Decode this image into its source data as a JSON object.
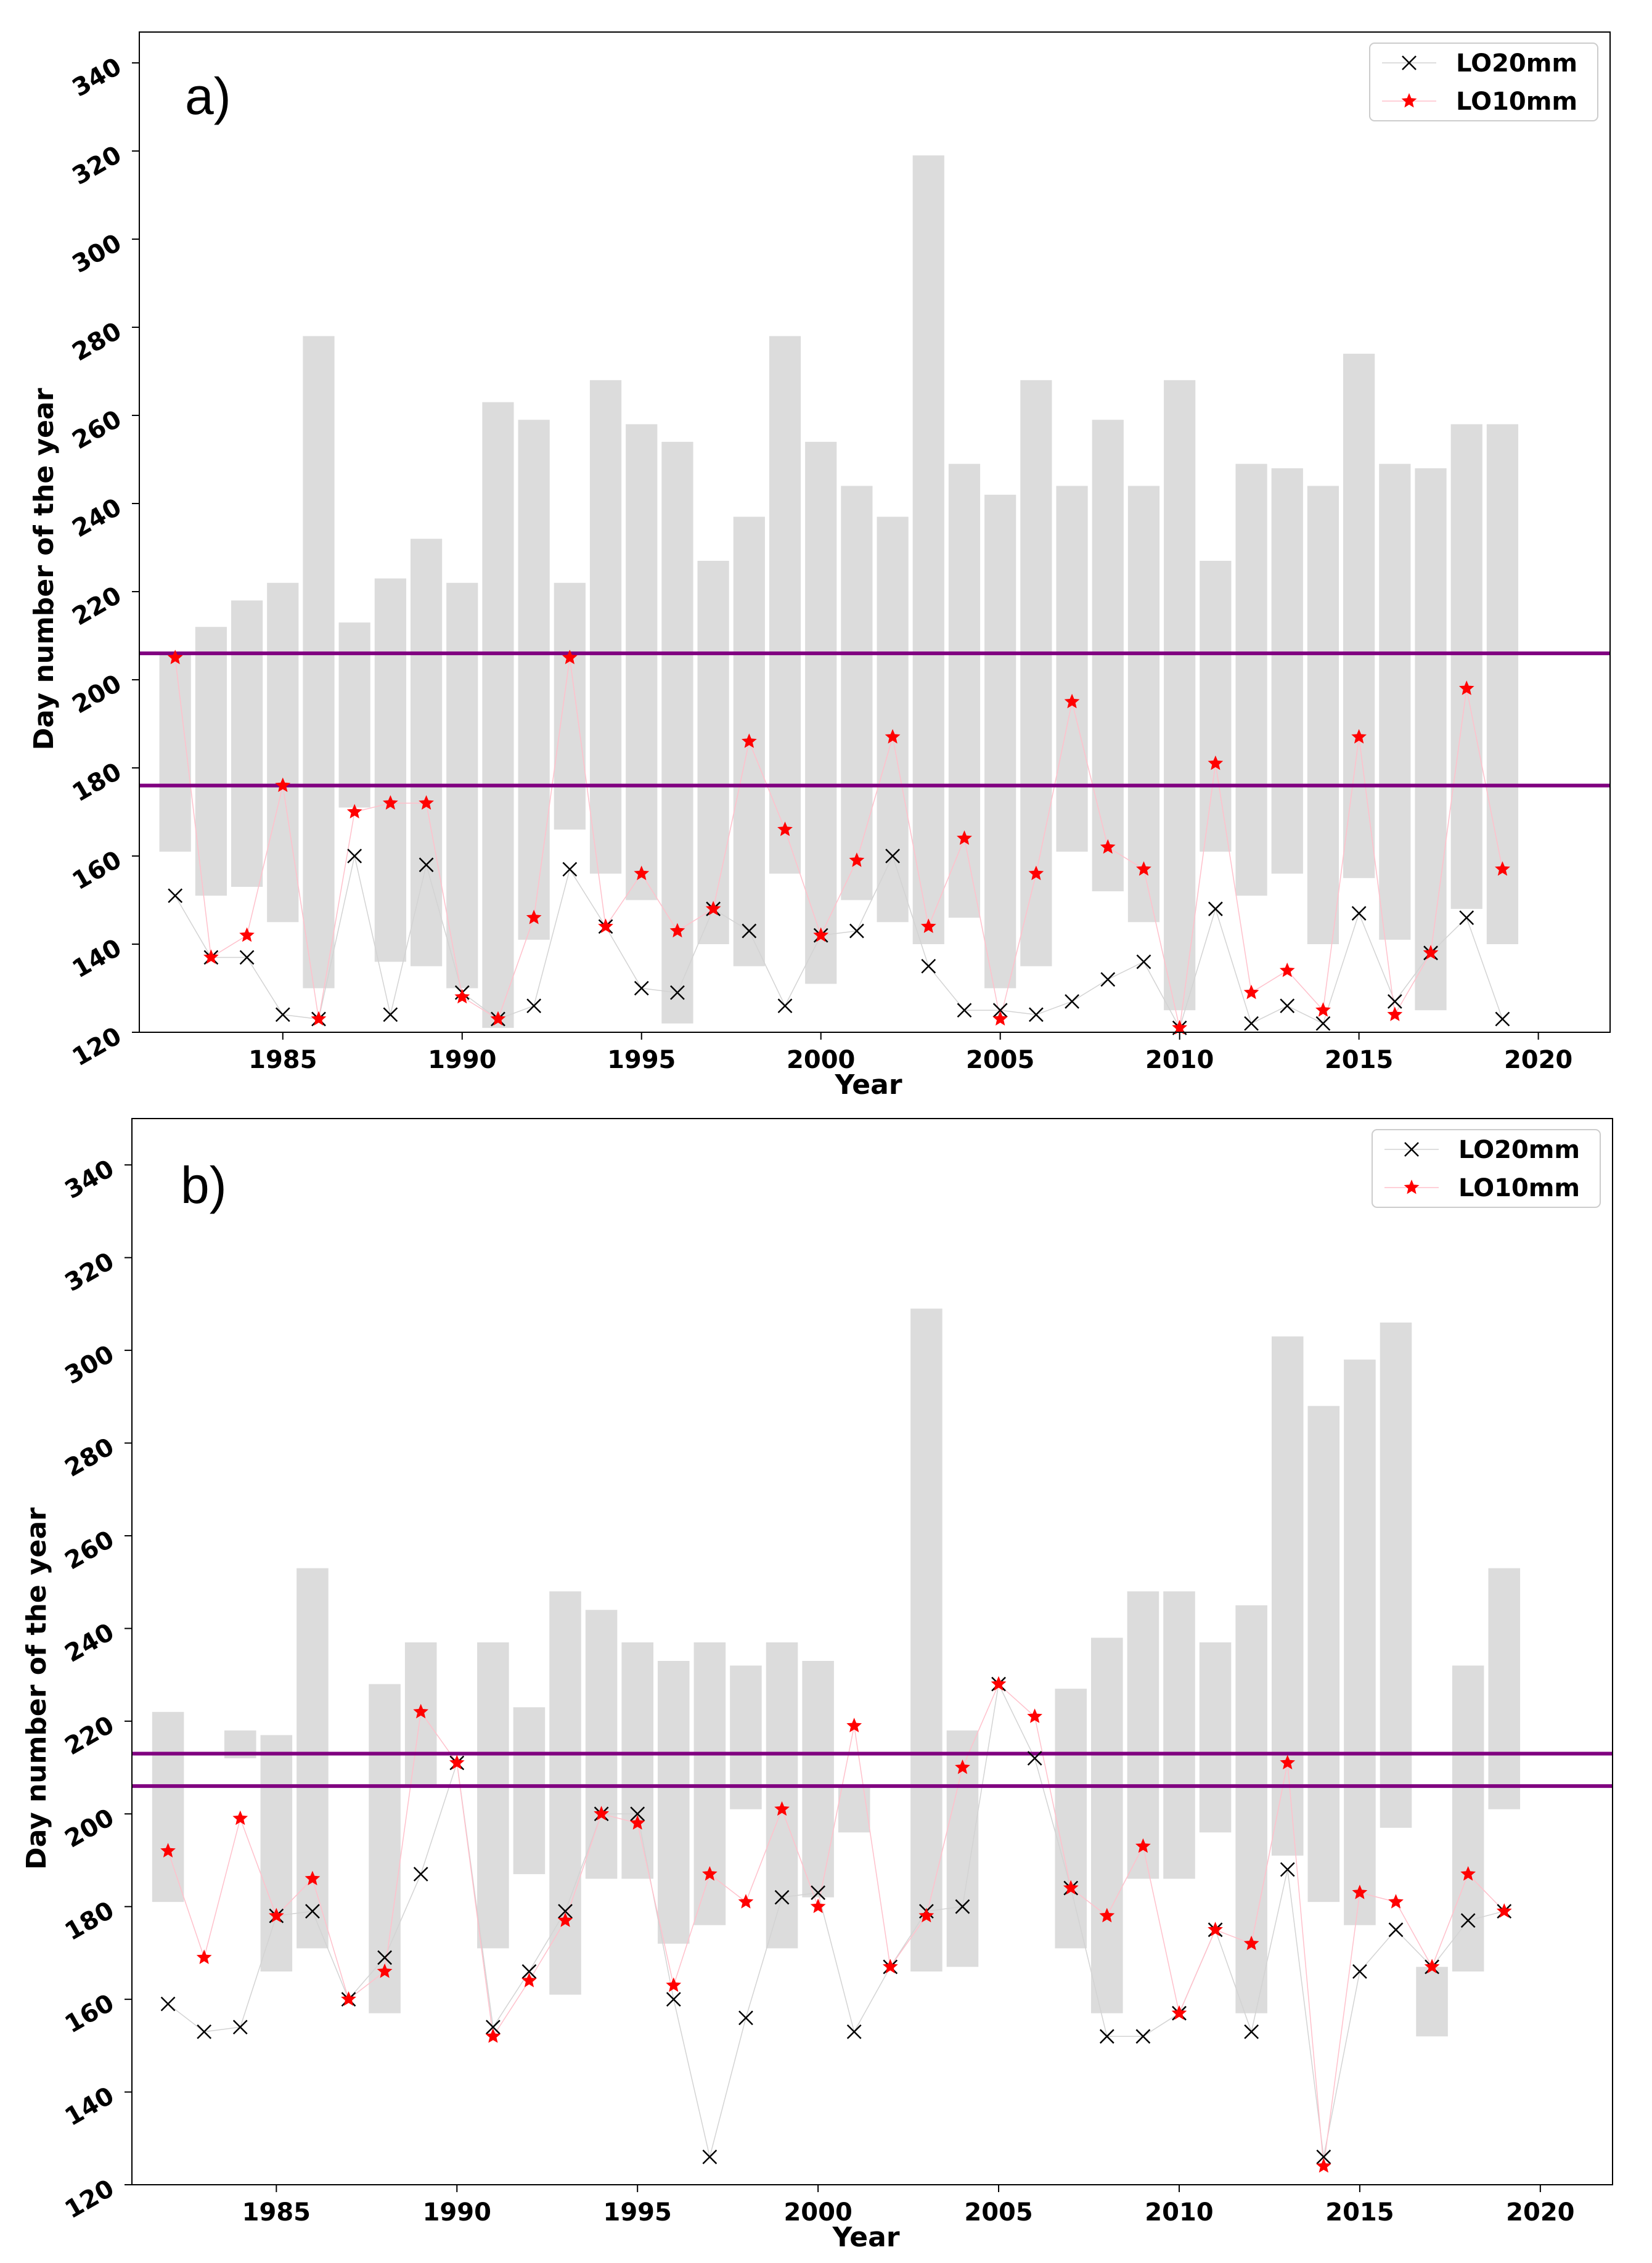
{
  "colors": {
    "bar": "#dcdcdc",
    "hline": "#800080",
    "lo20": "#000000",
    "lo10": "#ff0000",
    "line20": "#d3d3d3",
    "line10": "#ffc0cb"
  },
  "chart_data": [
    {
      "type": "bar",
      "panel_label": "a)",
      "xlabel": "Year",
      "ylabel": "Day number of the year",
      "xlim": [
        1981,
        2022
      ],
      "ylim": [
        120,
        347
      ],
      "xticks": [
        1985,
        1990,
        1995,
        2000,
        2005,
        2010,
        2015,
        2020
      ],
      "yticks": [
        120,
        140,
        160,
        180,
        200,
        220,
        240,
        260,
        280,
        300,
        320,
        340
      ],
      "hlines": [
        206,
        176
      ],
      "legend": {
        "position": "top-right",
        "entries": [
          "LO20mm",
          "LO10mm"
        ]
      },
      "years": [
        1982,
        1983,
        1984,
        1985,
        1986,
        1987,
        1988,
        1989,
        1990,
        1991,
        1992,
        1993,
        1994,
        1995,
        1996,
        1997,
        1998,
        1999,
        2000,
        2001,
        2002,
        2003,
        2004,
        2005,
        2006,
        2007,
        2008,
        2009,
        2010,
        2011,
        2012,
        2013,
        2014,
        2015,
        2016,
        2017,
        2018,
        2019
      ],
      "bar_low": [
        161,
        151,
        153,
        145,
        130,
        171,
        136,
        135,
        130,
        121,
        141,
        166,
        156,
        150,
        122,
        140,
        135,
        156,
        131,
        150,
        145,
        140,
        146,
        130,
        135,
        161,
        152,
        145,
        125,
        161,
        151,
        156,
        140,
        155,
        141,
        125,
        148,
        140
      ],
      "bar_high": [
        206,
        212,
        218,
        222,
        278,
        213,
        223,
        232,
        222,
        263,
        259,
        222,
        268,
        258,
        254,
        227,
        237,
        278,
        254,
        244,
        237,
        319,
        249,
        242,
        268,
        244,
        259,
        244,
        268,
        227,
        249,
        248,
        244,
        274,
        249,
        248,
        258,
        258
      ],
      "lo20mm": [
        151,
        137,
        137,
        124,
        123,
        160,
        124,
        158,
        129,
        123,
        126,
        157,
        144,
        130,
        129,
        148,
        143,
        126,
        142,
        143,
        160,
        135,
        125,
        125,
        124,
        127,
        132,
        136,
        121,
        148,
        122,
        126,
        122,
        147,
        127,
        138,
        146,
        123
      ],
      "lo10mm": [
        205,
        137,
        142,
        176,
        123,
        170,
        172,
        172,
        128,
        123,
        146,
        205,
        144,
        156,
        143,
        148,
        186,
        166,
        142,
        159,
        187,
        144,
        164,
        123,
        156,
        195,
        162,
        157,
        121,
        181,
        129,
        134,
        125,
        187,
        124,
        138,
        198,
        157
      ]
    },
    {
      "type": "bar",
      "panel_label": "b)",
      "xlabel": "Year",
      "ylabel": "Day number of the year",
      "xlim": [
        1981,
        2022
      ],
      "ylim": [
        120,
        350
      ],
      "xticks": [
        1985,
        1990,
        1995,
        2000,
        2005,
        2010,
        2015,
        2020
      ],
      "yticks": [
        120,
        140,
        160,
        180,
        200,
        220,
        240,
        260,
        280,
        300,
        320,
        340
      ],
      "hlines": [
        213,
        206
      ],
      "legend": {
        "position": "top-right",
        "entries": [
          "LO20mm",
          "LO10mm"
        ]
      },
      "years": [
        1982,
        1983,
        1984,
        1985,
        1986,
        1987,
        1988,
        1989,
        1990,
        1991,
        1992,
        1993,
        1994,
        1995,
        1996,
        1997,
        1998,
        1999,
        2000,
        2001,
        2002,
        2003,
        2004,
        2005,
        2006,
        2007,
        2008,
        2009,
        2010,
        2011,
        2012,
        2013,
        2014,
        2015,
        2016,
        2017,
        2018,
        2019
      ],
      "bar_low": [
        181,
        null,
        212,
        166,
        171,
        null,
        157,
        206,
        211,
        171,
        187,
        161,
        186,
        186,
        172,
        176,
        201,
        171,
        182,
        196,
        null,
        166,
        167,
        null,
        null,
        171,
        157,
        186,
        186,
        196,
        157,
        191,
        181,
        176,
        197,
        152,
        166,
        201
      ],
      "bar_high": [
        222,
        null,
        218,
        217,
        253,
        null,
        228,
        237,
        211,
        237,
        223,
        248,
        244,
        237,
        233,
        237,
        232,
        237,
        233,
        206,
        null,
        309,
        218,
        null,
        null,
        227,
        238,
        248,
        248,
        237,
        245,
        303,
        288,
        298,
        306,
        167,
        232,
        253
      ],
      "lo20mm": [
        159,
        153,
        154,
        178,
        179,
        160,
        169,
        187,
        211,
        154,
        166,
        179,
        200,
        200,
        160,
        126,
        156,
        182,
        183,
        153,
        167,
        179,
        180,
        228,
        212,
        184,
        152,
        152,
        157,
        175,
        153,
        188,
        126,
        166,
        175,
        167,
        177,
        179
      ],
      "lo10mm": [
        192,
        169,
        199,
        178,
        186,
        160,
        166,
        222,
        211,
        152,
        164,
        177,
        200,
        198,
        163,
        187,
        181,
        201,
        180,
        219,
        167,
        178,
        210,
        228,
        221,
        184,
        178,
        193,
        157,
        175,
        172,
        211,
        124,
        183,
        181,
        167,
        187,
        179
      ]
    }
  ]
}
